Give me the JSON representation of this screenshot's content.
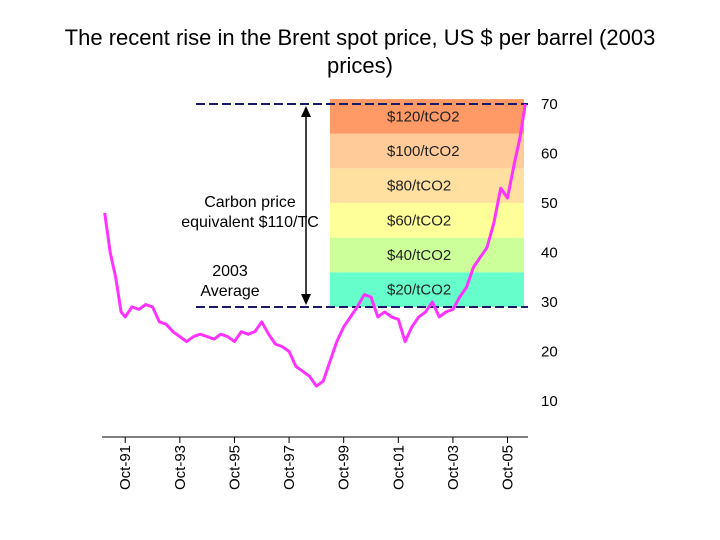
{
  "title": "The recent rise in the Brent spot price, US $ per barrel (2003 prices)",
  "annotations": {
    "carbon_line1": "Carbon price",
    "carbon_line2": "equivalent $110/TC",
    "avg_line1": "2003",
    "avg_line2": "Average"
  },
  "colors": {
    "price_line": "#ff33ff",
    "bands": [
      "#66ffcc",
      "#ccff99",
      "#ffff99",
      "#ffe0a0",
      "#ffcc99",
      "#ff9966"
    ]
  },
  "chart_data": {
    "type": "line",
    "title": "The recent rise in the Brent spot price, US $ per barrel (2003 prices)",
    "xlabel": "",
    "ylabel": "",
    "ylim": [
      0,
      75
    ],
    "yticks": [
      10,
      20,
      30,
      40,
      50,
      60,
      70
    ],
    "y_axis_side": "right",
    "x_tick_labels": [
      "Oct-91",
      "Oct-93",
      "Oct-95",
      "Oct-97",
      "Oct-99",
      "Oct-01",
      "Oct-03",
      "Oct-05"
    ],
    "x_tick_years": [
      1991.75,
      1993.75,
      1995.75,
      1997.75,
      1999.75,
      2001.75,
      2003.75,
      2005.75
    ],
    "xlim": [
      1990.9,
      2006.5
    ],
    "reference_lines": [
      {
        "name": "2003 average",
        "y": 29
      },
      {
        "name": "carbon price equivalent",
        "y": 70
      }
    ],
    "bands": [
      {
        "label": "$20/tCO2",
        "from": 29,
        "to": 36
      },
      {
        "label": "$40/tCO2",
        "from": 36,
        "to": 43
      },
      {
        "label": "$60/tCO2",
        "from": 43,
        "to": 50
      },
      {
        "label": "$80/tCO2",
        "from": 50,
        "to": 57
      },
      {
        "label": "$100/tCO2",
        "from": 57,
        "to": 64
      },
      {
        "label": "$120/tCO2",
        "from": 64,
        "to": 71
      }
    ],
    "series": [
      {
        "x": [
          1991.0,
          1991.2,
          1991.4,
          1991.6,
          1991.75,
          1992.0,
          1992.25,
          1992.5,
          1992.75,
          1993.0,
          1993.25,
          1993.5,
          1993.75,
          1994.0,
          1994.25,
          1994.5,
          1994.75,
          1995.0,
          1995.25,
          1995.5,
          1995.75,
          1996.0,
          1996.25,
          1996.5,
          1996.75,
          1997.0,
          1997.25,
          1997.5,
          1997.75,
          1998.0,
          1998.25,
          1998.5,
          1998.75,
          1999.0,
          1999.25,
          1999.5,
          1999.75,
          2000.0,
          2000.25,
          2000.5,
          2000.75,
          2001.0,
          2001.25,
          2001.5,
          2001.75,
          2002.0,
          2002.25,
          2002.5,
          2002.75,
          2003.0,
          2003.25,
          2003.5,
          2003.75,
          2004.0,
          2004.25,
          2004.5,
          2004.75,
          2005.0,
          2005.25,
          2005.5,
          2005.75,
          2006.0,
          2006.2,
          2006.4
        ],
        "values": [
          48,
          40,
          35,
          28,
          27,
          29,
          28.5,
          29.5,
          29,
          26,
          25.5,
          24,
          23,
          22,
          23,
          23.5,
          23,
          22.5,
          23.5,
          23,
          22,
          24,
          23.5,
          24,
          26,
          23.5,
          21.5,
          21,
          20,
          17,
          16,
          15,
          13,
          14,
          18,
          22,
          25,
          27,
          29,
          31.5,
          31,
          27,
          28,
          27,
          26.5,
          22,
          25,
          27,
          28,
          30,
          27,
          28,
          28.5,
          31,
          33,
          37,
          39,
          41,
          46,
          53,
          51,
          58,
          63,
          70
        ]
      }
    ]
  }
}
